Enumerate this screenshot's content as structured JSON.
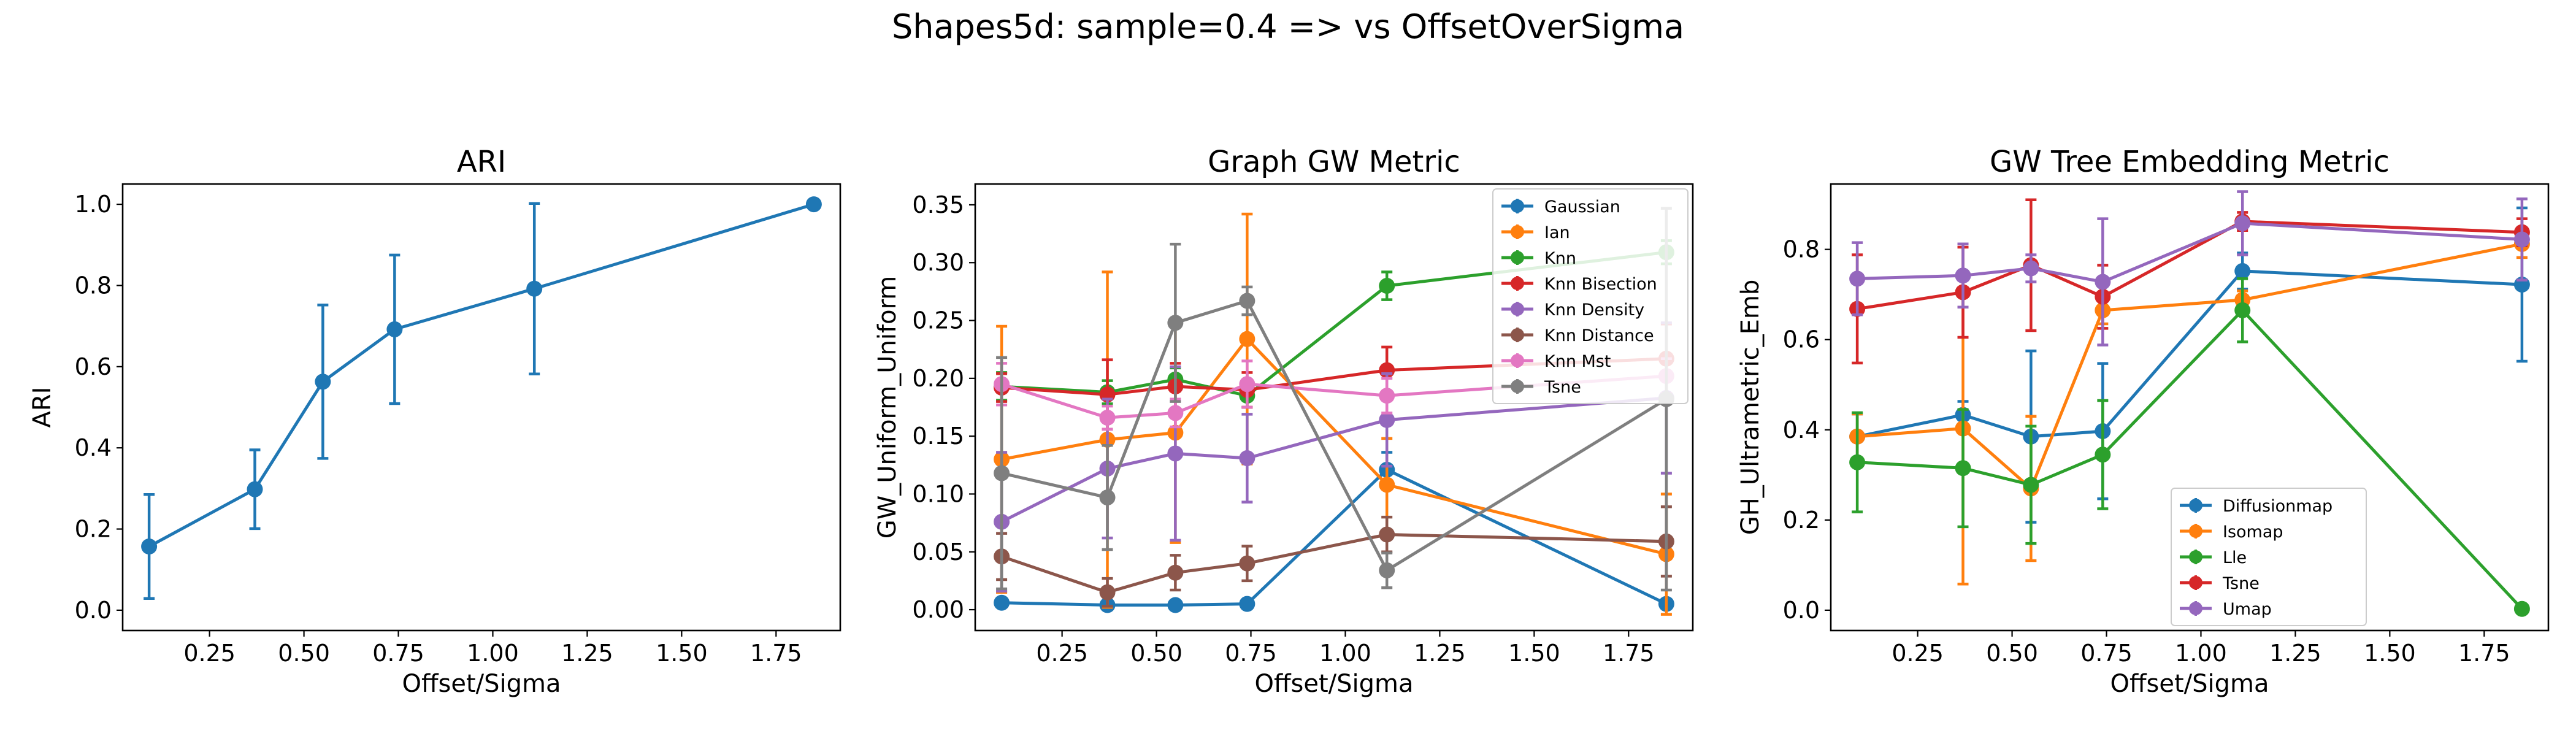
{
  "figure": {
    "suptitle": "Shapes5d: sample=0.4 => vs OffsetOverSigma"
  },
  "chart_data": [
    {
      "type": "line",
      "title": "ARI",
      "xlabel": "Offset/Sigma",
      "ylabel": "ARI",
      "xlim": [
        0.02,
        1.92
      ],
      "ylim": [
        -0.05,
        1.05
      ],
      "xticks": [
        0.25,
        0.5,
        0.75,
        1.0,
        1.25,
        1.5,
        1.75
      ],
      "xtick_labels": [
        "0.25",
        "0.50",
        "0.75",
        "1.00",
        "1.25",
        "1.50",
        "1.75"
      ],
      "yticks": [
        0.0,
        0.2,
        0.4,
        0.6,
        0.8,
        1.0
      ],
      "ytick_labels": [
        "0.0",
        "0.2",
        "0.4",
        "0.6",
        "0.8",
        "1.0"
      ],
      "legend": null,
      "x": [
        0.09,
        0.37,
        0.55,
        0.74,
        1.11,
        1.85
      ],
      "series": [
        {
          "name": "",
          "color": "#1f77b4",
          "values": [
            0.157,
            0.298,
            0.563,
            0.692,
            0.792,
            1.0
          ],
          "err": [
            0.128,
            0.097,
            0.189,
            0.183,
            0.21,
            0.0
          ]
        }
      ]
    },
    {
      "type": "line",
      "title": "Graph GW Metric",
      "xlabel": "Offset/Sigma",
      "ylabel": "GW_Uniform_Uniform",
      "xlim": [
        0.02,
        1.92
      ],
      "ylim": [
        -0.018,
        0.368
      ],
      "xticks": [
        0.25,
        0.5,
        0.75,
        1.0,
        1.25,
        1.5,
        1.75
      ],
      "xtick_labels": [
        "0.25",
        "0.50",
        "0.75",
        "1.00",
        "1.25",
        "1.50",
        "1.75"
      ],
      "yticks": [
        0.0,
        0.05,
        0.1,
        0.15,
        0.2,
        0.25,
        0.3,
        0.35
      ],
      "ytick_labels": [
        "0.00",
        "0.05",
        "0.10",
        "0.15",
        "0.20",
        "0.25",
        "0.30",
        "0.35"
      ],
      "legend": "top-right",
      "x": [
        0.09,
        0.37,
        0.55,
        0.74,
        1.11,
        1.85
      ],
      "series": [
        {
          "name": "Gaussian",
          "color": "#1f77b4",
          "values": [
            0.006,
            0.004,
            0.004,
            0.005,
            0.121,
            0.005
          ],
          "err": [
            0.003,
            0.002,
            0.002,
            0.003,
            0.015,
            0.003
          ]
        },
        {
          "name": "Ian",
          "color": "#ff7f0e",
          "values": [
            0.13,
            0.147,
            0.153,
            0.234,
            0.108,
            0.048
          ],
          "err": [
            0.115,
            0.145,
            0.095,
            0.108,
            0.04,
            0.052
          ]
        },
        {
          "name": "Knn",
          "color": "#2ca02c",
          "values": [
            0.193,
            0.188,
            0.199,
            0.185,
            0.28,
            0.309
          ],
          "err": [
            0.012,
            0.01,
            0.01,
            0.01,
            0.012,
            0.01
          ]
        },
        {
          "name": "Knn Bisection",
          "color": "#d62728",
          "values": [
            0.192,
            0.186,
            0.193,
            0.19,
            0.207,
            0.217
          ],
          "err": [
            0.012,
            0.03,
            0.02,
            0.015,
            0.02,
            0.03
          ]
        },
        {
          "name": "Knn Density",
          "color": "#9467bd",
          "values": [
            0.076,
            0.122,
            0.135,
            0.131,
            0.164,
            0.183
          ],
          "err": [
            0.06,
            0.06,
            0.075,
            0.038,
            0.04,
            0.065
          ]
        },
        {
          "name": "Knn Distance",
          "color": "#8c564b",
          "values": [
            0.046,
            0.015,
            0.032,
            0.04,
            0.065,
            0.059
          ],
          "err": [
            0.02,
            0.012,
            0.015,
            0.015,
            0.015,
            0.03
          ]
        },
        {
          "name": "Knn Mst",
          "color": "#e377c2",
          "values": [
            0.195,
            0.166,
            0.17,
            0.195,
            0.185,
            0.202
          ],
          "err": [
            0.018,
            0.01,
            0.012,
            0.02,
            0.015,
            0.015
          ]
        },
        {
          "name": "Tsne",
          "color": "#7f7f7f",
          "values": [
            0.118,
            0.097,
            0.248,
            0.267,
            0.034,
            0.182
          ],
          "err": [
            0.1,
            0.045,
            0.068,
            0.012,
            0.015,
            0.165
          ]
        }
      ]
    },
    {
      "type": "line",
      "title": "GW Tree Embedding Metric",
      "xlabel": "Offset/Sigma",
      "ylabel": "GH_Ultrametric_Emb",
      "xlim": [
        0.02,
        1.92
      ],
      "ylim": [
        -0.045,
        0.945
      ],
      "xticks": [
        0.25,
        0.5,
        0.75,
        1.0,
        1.25,
        1.5,
        1.75
      ],
      "xtick_labels": [
        "0.25",
        "0.50",
        "0.75",
        "1.00",
        "1.25",
        "1.50",
        "1.75"
      ],
      "yticks": [
        0.0,
        0.2,
        0.4,
        0.6,
        0.8
      ],
      "ytick_labels": [
        "0.0",
        "0.2",
        "0.4",
        "0.6",
        "0.8"
      ],
      "legend": "bottom-center",
      "x": [
        0.09,
        0.37,
        0.55,
        0.74,
        1.11,
        1.85
      ],
      "series": [
        {
          "name": "Diffusionmap",
          "color": "#1f77b4",
          "values": [
            0.385,
            0.433,
            0.385,
            0.397,
            0.752,
            0.722
          ],
          "err": [
            0.05,
            0.03,
            0.19,
            0.15,
            0.04,
            0.17
          ]
        },
        {
          "name": "Isomap",
          "color": "#ff7f0e",
          "values": [
            0.385,
            0.403,
            0.27,
            0.665,
            0.688,
            0.812
          ],
          "err": [
            0.05,
            0.345,
            0.16,
            0.03,
            0.02,
            0.03
          ]
        },
        {
          "name": "Lle",
          "color": "#2ca02c",
          "values": [
            0.328,
            0.315,
            0.278,
            0.345,
            0.665,
            0.003
          ],
          "err": [
            0.11,
            0.13,
            0.13,
            0.12,
            0.07,
            0.003
          ]
        },
        {
          "name": "Tsne",
          "color": "#d62728",
          "values": [
            0.668,
            0.705,
            0.765,
            0.695,
            0.862,
            0.838
          ],
          "err": [
            0.12,
            0.1,
            0.145,
            0.07,
            0.02,
            0.03
          ]
        },
        {
          "name": "Umap",
          "color": "#9467bd",
          "values": [
            0.735,
            0.742,
            0.758,
            0.728,
            0.858,
            0.822
          ],
          "err": [
            0.08,
            0.07,
            0.03,
            0.14,
            0.07,
            0.09
          ]
        }
      ]
    }
  ]
}
